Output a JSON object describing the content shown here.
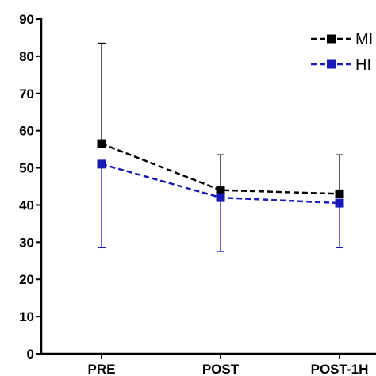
{
  "chart_data": {
    "type": "line",
    "categories": [
      "PRE",
      "POST",
      "POST-1H"
    ],
    "yticks": [
      0,
      10,
      20,
      30,
      40,
      50,
      60,
      70,
      80,
      90
    ],
    "ylim": [
      0,
      90
    ],
    "grid": false,
    "legend_position": "top-right",
    "series": [
      {
        "name": "MI",
        "color": "#000000",
        "values": [
          56.5,
          44,
          43
        ],
        "error_upper": [
          83.5,
          53.5,
          53.5
        ],
        "error_lower": [
          null,
          null,
          null
        ]
      },
      {
        "name": "HI",
        "color": "#1a1ab8",
        "values": [
          51,
          42,
          40.5
        ],
        "error_upper": [
          null,
          null,
          null
        ],
        "error_lower": [
          28.5,
          27.5,
          28.5
        ]
      }
    ]
  }
}
